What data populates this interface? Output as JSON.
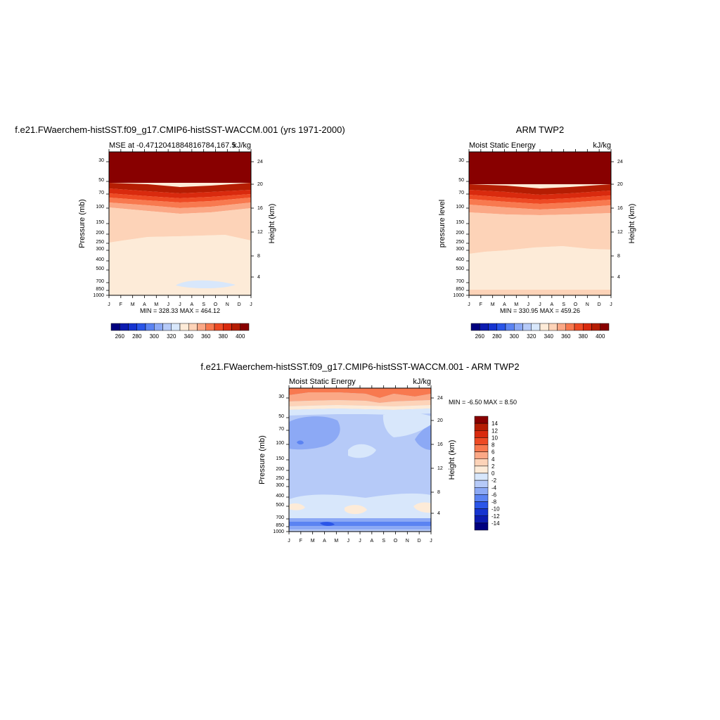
{
  "chart_data": [
    {
      "type": "heatmap",
      "title": "f.e21.FWaerchem-histSST.f09_g17.CMIP6-histSST-WACCM.001 (yrs 1971-2000)",
      "subtitle_left": "MSE at -0.47120418848167​84,167.5",
      "subtitle_right": "kJ/kg",
      "ylabel": "Pressure (mb)",
      "ylabel_right": "Height (km)",
      "x_ticks": [
        "J",
        "F",
        "M",
        "A",
        "M",
        "J",
        "J",
        "A",
        "S",
        "O",
        "N",
        "D",
        "J"
      ],
      "y_ticks": [
        "30",
        "50",
        "70",
        "100",
        "150",
        "200",
        "250",
        "300",
        "400",
        "500",
        "700",
        "850",
        "1000"
      ],
      "y_ticks_right": [
        "24",
        "20",
        "16",
        "12",
        "8",
        "4"
      ],
      "stats": "MIN = 328.33 MAX = 464.12",
      "levels": [
        260,
        270,
        280,
        290,
        300,
        310,
        320,
        330,
        340,
        350,
        360,
        370,
        380,
        390,
        400
      ],
      "colorbar_labels": [
        "260",
        "280",
        "300",
        "320",
        "340",
        "360",
        "380",
        "400"
      ],
      "colors": [
        "#00007f",
        "#0c1bb0",
        "#1634d0",
        "#2a55e8",
        "#5b83f2",
        "#8ca9f5",
        "#b6caf8",
        "#d8e7fb",
        "#fdebd8",
        "#fdd3b8",
        "#fba886",
        "#f8794f",
        "#ee4a24",
        "#d92a0e",
        "#b51d03",
        "#880000"
      ],
      "min": 328.33,
      "max": 464.12,
      "profile_bins": [
        12,
        12,
        11,
        10,
        9,
        8,
        8,
        7,
        7,
        7,
        7,
        8
      ]
    },
    {
      "type": "heatmap",
      "title": "ARM TWP2",
      "subtitle_left": "Moist Static Energy",
      "subtitle_right": "kJ/kg",
      "ylabel": "pressure level",
      "ylabel_right": "Height (km)",
      "x_ticks": [
        "J",
        "F",
        "M",
        "A",
        "M",
        "J",
        "J",
        "A",
        "S",
        "O",
        "N",
        "D",
        "J"
      ],
      "y_ticks": [
        "30",
        "50",
        "70",
        "100",
        "150",
        "200",
        "250",
        "300",
        "400",
        "500",
        "700",
        "850",
        "1000"
      ],
      "y_ticks_right": [
        "24",
        "20",
        "16",
        "12",
        "8",
        "4"
      ],
      "stats": "MIN = 330.95 MAX = 459.26",
      "levels": [
        260,
        270,
        280,
        290,
        300,
        310,
        320,
        330,
        340,
        350,
        360,
        370,
        380,
        390,
        400
      ],
      "colorbar_labels": [
        "260",
        "280",
        "300",
        "320",
        "340",
        "360",
        "380",
        "400"
      ],
      "colors": [
        "#00007f",
        "#0c1bb0",
        "#1634d0",
        "#2a55e8",
        "#5b83f2",
        "#8ca9f5",
        "#b6caf8",
        "#d8e7fb",
        "#fdebd8",
        "#fdd3b8",
        "#fba886",
        "#f8794f",
        "#ee4a24",
        "#d92a0e",
        "#b51d03",
        "#880000"
      ],
      "min": 330.95,
      "max": 459.26
    },
    {
      "type": "heatmap",
      "title": "f.e21.FWaerchem-histSST.f09_g17.CMIP6-histSST-WACCM.001 - ARM TWP2",
      "subtitle_left": "Moist Static Energy",
      "subtitle_right": "kJ/kg",
      "ylabel": "Pressure (mb)",
      "ylabel_right": "Height (km)",
      "x_ticks": [
        "J",
        "F",
        "M",
        "A",
        "M",
        "J",
        "J",
        "A",
        "S",
        "O",
        "N",
        "D",
        "J"
      ],
      "y_ticks": [
        "30",
        "50",
        "70",
        "100",
        "150",
        "200",
        "250",
        "300",
        "400",
        "500",
        "700",
        "850",
        "1000"
      ],
      "y_ticks_right": [
        "24",
        "20",
        "16",
        "12",
        "8",
        "4"
      ],
      "stats": "MIN =  -6.50 MAX =   8.50",
      "levels": [
        -14,
        -12,
        -10,
        -8,
        -6,
        -4,
        -2,
        0,
        2,
        4,
        6,
        8,
        10,
        12,
        14
      ],
      "colorbar_labels": [
        "14",
        "12",
        "10",
        "8",
        "6",
        "4",
        "2",
        "0",
        "-2",
        "-4",
        "-6",
        "-8",
        "-10",
        "-12",
        "-14"
      ],
      "colors": [
        "#00007f",
        "#0c1bb0",
        "#1634d0",
        "#2a55e8",
        "#5b83f2",
        "#8ca9f5",
        "#b6caf8",
        "#d8e7fb",
        "#fdebd8",
        "#fdd3b8",
        "#fba886",
        "#f8794f",
        "#ee4a24",
        "#d92a0e",
        "#b51d03",
        "#880000"
      ],
      "min": -6.5,
      "max": 8.5
    }
  ]
}
